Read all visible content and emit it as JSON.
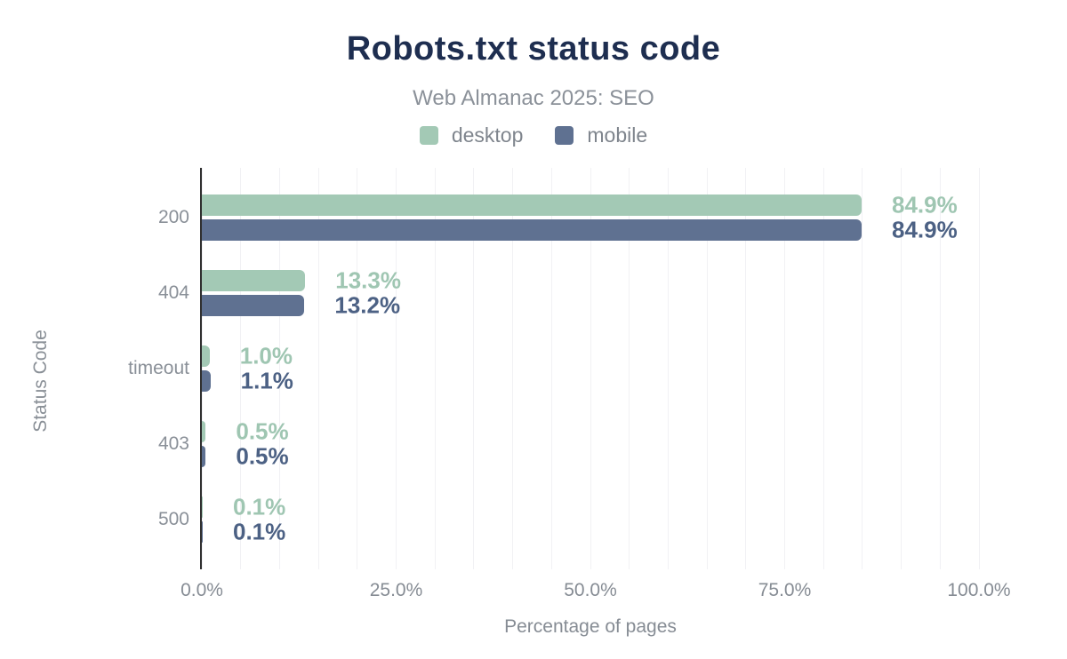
{
  "title": "Robots.txt status code",
  "subtitle": "Web Almanac 2025: SEO",
  "colors": {
    "desktop": "#a3c9b5",
    "mobile": "#5f7191",
    "desktop_label": "#9fc6b2",
    "mobile_label": "#4c6184",
    "title_text": "#1e2e50",
    "axis_line": "#2f2f2f",
    "gridline": "#f1f1f4",
    "muted_text": "#868c94"
  },
  "chart_data": {
    "type": "bar",
    "orientation": "horizontal",
    "title": "Robots.txt status code",
    "subtitle": "Web Almanac 2025: SEO",
    "categories": [
      "200",
      "404",
      "timeout",
      "403",
      "500"
    ],
    "series": [
      {
        "name": "desktop",
        "color": "#a3c9b5",
        "label_color": "#9fc6b2",
        "values": [
          84.9,
          13.3,
          1.0,
          0.5,
          0.1
        ],
        "labels": [
          "84.9%",
          "13.3%",
          "1.0%",
          "0.5%",
          "0.1%"
        ]
      },
      {
        "name": "mobile",
        "color": "#5f7191",
        "label_color": "#4c6184",
        "values": [
          84.9,
          13.2,
          1.1,
          0.5,
          0.1
        ],
        "labels": [
          "84.9%",
          "13.2%",
          "1.1%",
          "0.5%",
          "0.1%"
        ]
      }
    ],
    "xlabel": "Percentage of pages",
    "ylabel": "Status Code",
    "xlim": [
      0,
      100
    ],
    "xticks": [
      {
        "value": 0,
        "label": "0.0%"
      },
      {
        "value": 25,
        "label": "25.0%"
      },
      {
        "value": 50,
        "label": "50.0%"
      },
      {
        "value": 75,
        "label": "75.0%"
      },
      {
        "value": 100,
        "label": "100.0%"
      }
    ],
    "grid": {
      "show": true,
      "step_percent": 5
    },
    "legend_position": "top"
  }
}
